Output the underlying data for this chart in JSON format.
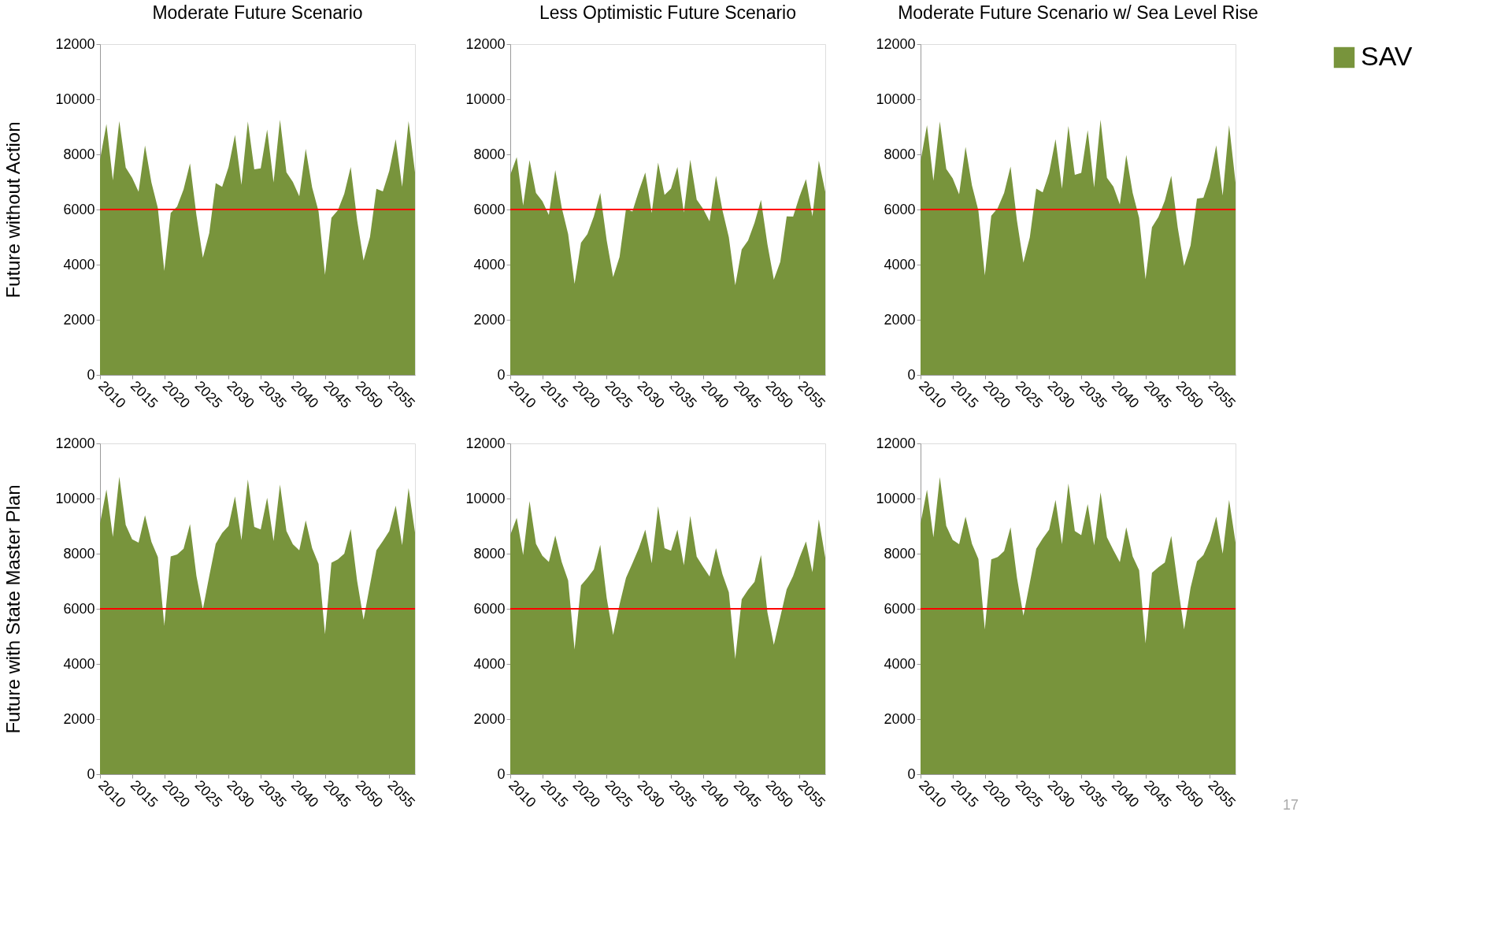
{
  "chart_data": [
    {
      "type": "area",
      "title": "Moderate Future Scenario",
      "ylabel": "Future without Action",
      "x": [
        2010,
        2011,
        2012,
        2013,
        2014,
        2015,
        2016,
        2017,
        2018,
        2019,
        2020,
        2021,
        2022,
        2023,
        2024,
        2025,
        2026,
        2027,
        2028,
        2029,
        2030,
        2031,
        2032,
        2033,
        2034,
        2035,
        2036,
        2037,
        2038,
        2039,
        2040,
        2041,
        2042,
        2043,
        2044,
        2045,
        2046,
        2047,
        2048,
        2049,
        2050,
        2051,
        2052,
        2053,
        2054,
        2055,
        2056,
        2057,
        2058,
        2059
      ],
      "series": [
        {
          "color": "#78943c",
          "values": [
            7810,
            9100,
            7060,
            9210,
            7520,
            7150,
            6640,
            8320,
            6980,
            6050,
            3770,
            5880,
            6110,
            6730,
            7670,
            5790,
            4250,
            5150,
            6960,
            6820,
            7540,
            8710,
            6890,
            9190,
            7460,
            7490,
            8900,
            6980,
            9260,
            7350,
            7000,
            6480,
            8200,
            6800,
            5930,
            3630,
            5700,
            5970,
            6570,
            7540,
            5610,
            4150,
            5010,
            6750,
            6660,
            7400,
            8550,
            6820,
            9210,
            7350
          ]
        }
      ],
      "xlim": [
        2010,
        2059
      ],
      "xticks": [
        2010,
        2015,
        2020,
        2025,
        2030,
        2035,
        2040,
        2045,
        2050,
        2055
      ],
      "ylim": [
        0,
        12000
      ],
      "yticks": [
        0,
        2000,
        4000,
        6000,
        8000,
        10000,
        12000
      ],
      "ref_lines": [
        {
          "axis": "y",
          "value": 6000,
          "color": "#ff0000"
        }
      ],
      "grid": false
    },
    {
      "type": "area",
      "title": "Less Optimistic Future Scenario",
      "x": [
        2010,
        2011,
        2012,
        2013,
        2014,
        2015,
        2016,
        2017,
        2018,
        2019,
        2020,
        2021,
        2022,
        2023,
        2024,
        2025,
        2026,
        2027,
        2028,
        2029,
        2030,
        2031,
        2032,
        2033,
        2034,
        2035,
        2036,
        2037,
        2038,
        2039,
        2040,
        2041,
        2042,
        2043,
        2044,
        2045,
        2046,
        2047,
        2048,
        2049,
        2050,
        2051,
        2052,
        2053,
        2054,
        2055,
        2056,
        2057,
        2058,
        2059
      ],
      "series": [
        {
          "color": "#78943c",
          "values": [
            7260,
            7900,
            6140,
            7790,
            6600,
            6300,
            5800,
            7430,
            6070,
            5110,
            3300,
            4790,
            5110,
            5750,
            6600,
            4880,
            3550,
            4280,
            6020,
            5930,
            6670,
            7340,
            5870,
            7700,
            6530,
            6760,
            7540,
            5890,
            7810,
            6360,
            6020,
            5570,
            7220,
            5980,
            4990,
            3250,
            4550,
            4880,
            5520,
            6350,
            4740,
            3460,
            4100,
            5750,
            5740,
            6480,
            7100,
            5750,
            7770,
            6640
          ]
        }
      ],
      "xlim": [
        2010,
        2059
      ],
      "xticks": [
        2010,
        2015,
        2020,
        2025,
        2030,
        2035,
        2040,
        2045,
        2050,
        2055
      ],
      "ylim": [
        0,
        12000
      ],
      "yticks": [
        0,
        2000,
        4000,
        6000,
        8000,
        10000,
        12000
      ],
      "ref_lines": [
        {
          "axis": "y",
          "value": 6000,
          "color": "#ff0000"
        }
      ],
      "grid": false
    },
    {
      "type": "area",
      "title": "Moderate Future Scenario w/ Sea Level Rise",
      "x": [
        2010,
        2011,
        2012,
        2013,
        2014,
        2015,
        2016,
        2017,
        2018,
        2019,
        2020,
        2021,
        2022,
        2023,
        2024,
        2025,
        2026,
        2027,
        2028,
        2029,
        2030,
        2031,
        2032,
        2033,
        2034,
        2035,
        2036,
        2037,
        2038,
        2039,
        2040,
        2041,
        2042,
        2043,
        2044,
        2045,
        2046,
        2047,
        2048,
        2049,
        2050,
        2051,
        2052,
        2053,
        2054,
        2055,
        2056,
        2057,
        2058,
        2059
      ],
      "series": [
        {
          "name": "SAV",
          "color": "#78943c",
          "values": [
            7750,
            9060,
            7040,
            9190,
            7470,
            7130,
            6550,
            8270,
            6870,
            5960,
            3610,
            5770,
            6050,
            6600,
            7560,
            5590,
            4070,
            4990,
            6760,
            6620,
            7330,
            8550,
            6760,
            9030,
            7260,
            7330,
            8880,
            6800,
            9260,
            7150,
            6830,
            6180,
            7980,
            6600,
            5700,
            3470,
            5360,
            5730,
            6320,
            7220,
            5360,
            3950,
            4690,
            6390,
            6430,
            7130,
            8330,
            6510,
            9060,
            6980
          ]
        }
      ],
      "xlim": [
        2010,
        2059
      ],
      "xticks": [
        2010,
        2015,
        2020,
        2025,
        2030,
        2035,
        2040,
        2045,
        2050,
        2055
      ],
      "ylim": [
        0,
        12000
      ],
      "yticks": [
        0,
        2000,
        4000,
        6000,
        8000,
        10000,
        12000
      ],
      "ref_lines": [
        {
          "axis": "y",
          "value": 6000,
          "color": "#ff0000"
        }
      ],
      "grid": false,
      "legend": "right"
    },
    {
      "type": "area",
      "ylabel": "Future with State Master Plan",
      "x": [
        2010,
        2011,
        2012,
        2013,
        2014,
        2015,
        2016,
        2017,
        2018,
        2019,
        2020,
        2021,
        2022,
        2023,
        2024,
        2025,
        2026,
        2027,
        2028,
        2029,
        2030,
        2031,
        2032,
        2033,
        2034,
        2035,
        2036,
        2037,
        2038,
        2039,
        2040,
        2041,
        2042,
        2043,
        2044,
        2045,
        2046,
        2047,
        2048,
        2049,
        2050,
        2051,
        2052,
        2053,
        2054,
        2055,
        2056,
        2057,
        2058,
        2059
      ],
      "series": [
        {
          "color": "#78943c",
          "values": [
            9100,
            10330,
            8610,
            10790,
            9040,
            8520,
            8400,
            9390,
            8430,
            7880,
            5400,
            7900,
            7970,
            8180,
            9070,
            7190,
            5980,
            7190,
            8360,
            8750,
            9010,
            10080,
            8490,
            10690,
            8970,
            8880,
            10030,
            8460,
            10510,
            8820,
            8340,
            8120,
            9210,
            8200,
            7630,
            5080,
            7670,
            7790,
            8000,
            8890,
            7010,
            5610,
            6870,
            8120,
            8460,
            8820,
            9740,
            8310,
            10380,
            8770
          ]
        }
      ],
      "xlim": [
        2010,
        2059
      ],
      "xticks": [
        2010,
        2015,
        2020,
        2025,
        2030,
        2035,
        2040,
        2045,
        2050,
        2055
      ],
      "ylim": [
        0,
        12000
      ],
      "yticks": [
        0,
        2000,
        4000,
        6000,
        8000,
        10000,
        12000
      ],
      "ref_lines": [
        {
          "axis": "y",
          "value": 6000,
          "color": "#ff0000"
        }
      ],
      "grid": false
    },
    {
      "type": "area",
      "x": [
        2010,
        2011,
        2012,
        2013,
        2014,
        2015,
        2016,
        2017,
        2018,
        2019,
        2020,
        2021,
        2022,
        2023,
        2024,
        2025,
        2026,
        2027,
        2028,
        2029,
        2030,
        2031,
        2032,
        2033,
        2034,
        2035,
        2036,
        2037,
        2038,
        2039,
        2040,
        2041,
        2042,
        2043,
        2044,
        2045,
        2046,
        2047,
        2048,
        2049,
        2050,
        2051,
        2052,
        2053,
        2054,
        2055,
        2056,
        2057,
        2058,
        2059
      ],
      "series": [
        {
          "color": "#78943c",
          "values": [
            8680,
            9300,
            7950,
            9910,
            8360,
            7920,
            7700,
            8660,
            7700,
            7030,
            4520,
            6850,
            7120,
            7430,
            8320,
            6390,
            5050,
            6160,
            7120,
            7650,
            8200,
            8870,
            7650,
            9720,
            8200,
            8110,
            8870,
            7580,
            9370,
            7890,
            7520,
            7170,
            8200,
            7260,
            6600,
            4180,
            6340,
            6690,
            6980,
            7950,
            5880,
            4690,
            5700,
            6710,
            7190,
            7860,
            8440,
            7330,
            9240,
            7860
          ]
        }
      ],
      "xlim": [
        2010,
        2059
      ],
      "xticks": [
        2010,
        2015,
        2020,
        2025,
        2030,
        2035,
        2040,
        2045,
        2050,
        2055
      ],
      "ylim": [
        0,
        12000
      ],
      "yticks": [
        0,
        2000,
        4000,
        6000,
        8000,
        10000,
        12000
      ],
      "ref_lines": [
        {
          "axis": "y",
          "value": 6000,
          "color": "#ff0000"
        }
      ],
      "grid": false
    },
    {
      "type": "area",
      "x": [
        2010,
        2011,
        2012,
        2013,
        2014,
        2015,
        2016,
        2017,
        2018,
        2019,
        2020,
        2021,
        2022,
        2023,
        2024,
        2025,
        2026,
        2027,
        2028,
        2029,
        2030,
        2031,
        2032,
        2033,
        2034,
        2035,
        2036,
        2037,
        2038,
        2039,
        2040,
        2041,
        2042,
        2043,
        2044,
        2045,
        2046,
        2047,
        2048,
        2049,
        2050,
        2051,
        2052,
        2053,
        2054,
        2055,
        2056,
        2057,
        2058,
        2059
      ],
      "series": [
        {
          "color": "#78943c",
          "values": [
            9100,
            10320,
            8590,
            10780,
            9010,
            8500,
            8340,
            9340,
            8360,
            7810,
            5250,
            7790,
            7880,
            8090,
            8960,
            7130,
            5750,
            6940,
            8180,
            8550,
            8870,
            9950,
            8340,
            10540,
            8820,
            8670,
            9800,
            8300,
            10220,
            8590,
            8130,
            7690,
            8960,
            7900,
            7400,
            4740,
            7310,
            7510,
            7680,
            8640,
            6900,
            5250,
            6760,
            7720,
            7950,
            8480,
            9340,
            8000,
            9950,
            8410
          ]
        }
      ],
      "xlim": [
        2010,
        2059
      ],
      "xticks": [
        2010,
        2015,
        2020,
        2025,
        2030,
        2035,
        2040,
        2045,
        2050,
        2055
      ],
      "ylim": [
        0,
        12000
      ],
      "yticks": [
        0,
        2000,
        4000,
        6000,
        8000,
        10000,
        12000
      ],
      "ref_lines": [
        {
          "axis": "y",
          "value": 6000,
          "color": "#ff0000"
        }
      ],
      "grid": false,
      "annotations": [
        "17"
      ]
    }
  ]
}
